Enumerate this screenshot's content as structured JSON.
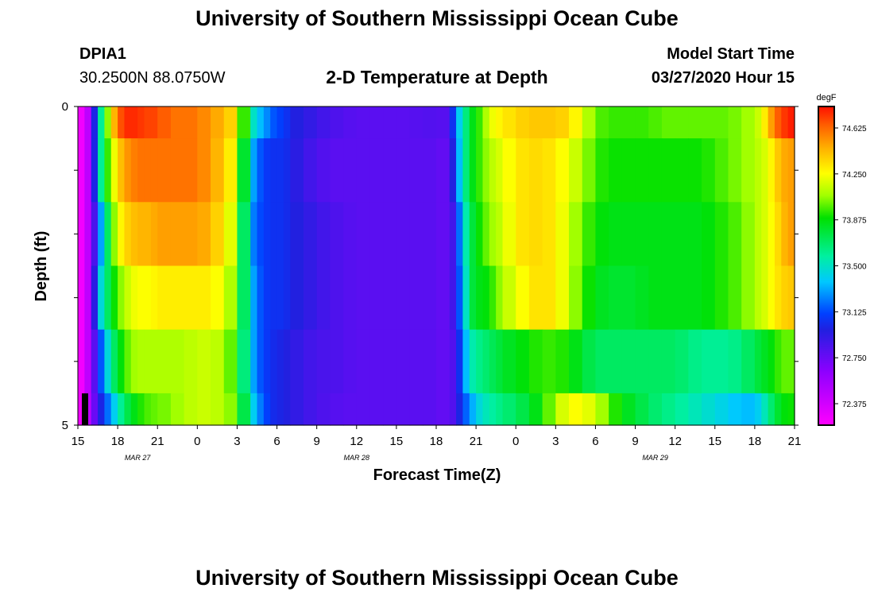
{
  "page": {
    "title": "University of Southern Mississippi Ocean Cube",
    "footer_title": "University of Southern Mississippi Ocean Cube",
    "station_id": "DPIA1",
    "station_coords": "30.2500N 88.0750W",
    "plot_title": "2-D Temperature at Depth",
    "model_start_label": "Model Start Time",
    "model_start_value": "03/27/2020 Hour 15"
  },
  "chart_data": {
    "type": "heatmap",
    "title": "2-D Temperature at Depth",
    "xlabel": "Forecast Time(Z)",
    "ylabel": "Depth (ft)",
    "x_start_hour": 0,
    "x_end_hour": 54,
    "ylim": [
      0,
      5
    ],
    "y_tick_labels": [
      {
        "depth": 0,
        "label": "0"
      },
      {
        "depth": 1,
        "label": ""
      },
      {
        "depth": 2,
        "label": ""
      },
      {
        "depth": 3,
        "label": ""
      },
      {
        "depth": 4,
        "label": ""
      },
      {
        "depth": 5,
        "label": "5"
      }
    ],
    "x_tick_labels": [
      "15",
      "18",
      "21",
      "0",
      "3",
      "6",
      "9",
      "12",
      "15",
      "18",
      "21",
      "0",
      "3",
      "6",
      "9",
      "12",
      "15",
      "18",
      "21"
    ],
    "date_labels": [
      {
        "hour": 4.5,
        "label": "MAR 27"
      },
      {
        "hour": 21,
        "label": "MAR 28"
      },
      {
        "hour": 43.5,
        "label": "MAR 29"
      }
    ],
    "colorbar": {
      "unit": "degF",
      "min": 72.2,
      "max": 74.8,
      "tick_values": [
        72.375,
        72.75,
        73.125,
        73.5,
        73.875,
        74.25,
        74.625
      ],
      "tick_labels": [
        "72.375",
        "72.750",
        "73.125",
        "73.500",
        "73.875",
        "74.250",
        "74.625"
      ]
    },
    "time_keyframes_hours": [
      0,
      0.5,
      1,
      1.5,
      2,
      2.5,
      3,
      3.5,
      4,
      4.5,
      5,
      5.5,
      6,
      7,
      8,
      9,
      10,
      11,
      12,
      13,
      13.5,
      14,
      14.5,
      15,
      15.5,
      16,
      17,
      18,
      19,
      20,
      21,
      22,
      23,
      24,
      25,
      26,
      27,
      28,
      28.5,
      29,
      29.5,
      30,
      30.5,
      31,
      31.5,
      32,
      33,
      34,
      35,
      36,
      37,
      38,
      39,
      40,
      41,
      42,
      43,
      44,
      45,
      46,
      47,
      48,
      49,
      50,
      51,
      51.5,
      52,
      52.5,
      53,
      53.5,
      54
    ],
    "depth_layers": [
      {
        "depth_range": [
          0,
          0.5
        ],
        "values_degF": [
          72.2,
          72.3,
          72.6,
          73.4,
          73.8,
          74.3,
          74.6,
          74.75,
          74.75,
          74.75,
          74.7,
          74.7,
          74.7,
          74.6,
          74.6,
          74.6,
          74.5,
          74.45,
          74.3,
          73.6,
          73.4,
          73.3,
          73.2,
          73.1,
          73.1,
          73.0,
          72.95,
          72.9,
          72.85,
          72.82,
          72.8,
          72.8,
          72.8,
          72.8,
          72.8,
          72.82,
          72.82,
          72.8,
          73.3,
          73.5,
          73.8,
          73.9,
          74.0,
          74.2,
          74.25,
          74.3,
          74.35,
          74.4,
          74.4,
          74.4,
          74.35,
          74.2,
          74.0,
          73.95,
          73.95,
          73.95,
          73.95,
          74.0,
          74.0,
          74.0,
          74.0,
          74.0,
          74.0,
          74.05,
          74.1,
          74.2,
          74.4,
          74.6,
          74.7,
          74.75,
          74.8
        ]
      },
      {
        "depth_range": [
          0.5,
          1.5
        ],
        "values_degF": [
          72.2,
          72.3,
          72.6,
          73.4,
          73.8,
          74.1,
          74.35,
          74.5,
          74.55,
          74.6,
          74.6,
          74.6,
          74.6,
          74.6,
          74.6,
          74.6,
          74.5,
          74.4,
          74.2,
          73.4,
          73.2,
          73.1,
          73.05,
          73.05,
          73.05,
          73.0,
          72.9,
          72.85,
          72.8,
          72.8,
          72.8,
          72.8,
          72.8,
          72.8,
          72.8,
          72.8,
          72.8,
          72.75,
          73.2,
          73.5,
          73.8,
          73.9,
          74.0,
          74.1,
          74.15,
          74.2,
          74.3,
          74.35,
          74.35,
          74.3,
          74.2,
          74.1,
          73.95,
          73.9,
          73.9,
          73.9,
          73.9,
          73.9,
          73.9,
          73.9,
          73.9,
          73.95,
          74.0,
          74.05,
          74.1,
          74.15,
          74.2,
          74.35,
          74.45,
          74.5,
          74.5
        ]
      },
      {
        "depth_range": [
          1.5,
          2.5
        ],
        "values_degF": [
          72.2,
          72.3,
          72.6,
          73.1,
          73.5,
          73.9,
          74.2,
          74.35,
          74.4,
          74.45,
          74.45,
          74.45,
          74.5,
          74.5,
          74.5,
          74.5,
          74.45,
          74.3,
          74.1,
          73.3,
          73.15,
          73.1,
          73.05,
          73.05,
          73.05,
          73.0,
          72.95,
          72.9,
          72.85,
          72.82,
          72.8,
          72.8,
          72.8,
          72.8,
          72.8,
          72.8,
          72.8,
          72.75,
          73.0,
          73.4,
          73.7,
          73.85,
          73.95,
          74.05,
          74.1,
          74.15,
          74.3,
          74.35,
          74.35,
          74.3,
          74.15,
          74.0,
          73.9,
          73.85,
          73.85,
          73.85,
          73.85,
          73.85,
          73.85,
          73.85,
          73.85,
          73.9,
          73.95,
          74.0,
          74.1,
          74.15,
          74.2,
          74.3,
          74.4,
          74.5,
          74.5
        ]
      },
      {
        "depth_range": [
          2.5,
          3.5
        ],
        "values_degF": [
          72.2,
          72.3,
          72.6,
          73.3,
          73.6,
          73.8,
          74.0,
          74.1,
          74.2,
          74.25,
          74.25,
          74.25,
          74.3,
          74.3,
          74.3,
          74.3,
          74.3,
          74.2,
          74.0,
          73.4,
          73.2,
          73.1,
          73.05,
          73.05,
          73.05,
          73.0,
          72.95,
          72.9,
          72.85,
          72.82,
          72.8,
          72.8,
          72.8,
          72.8,
          72.8,
          72.8,
          72.8,
          72.75,
          73.0,
          73.3,
          73.7,
          73.85,
          73.85,
          73.9,
          74.0,
          74.1,
          74.2,
          74.3,
          74.35,
          74.3,
          74.15,
          73.95,
          73.85,
          73.8,
          73.8,
          73.8,
          73.85,
          73.85,
          73.85,
          73.85,
          73.85,
          73.9,
          73.95,
          74.0,
          74.1,
          74.15,
          74.2,
          74.3,
          74.35,
          74.4,
          74.4
        ]
      },
      {
        "depth_range": [
          3.5,
          4.5
        ],
        "values_degF": [
          72.2,
          72.3,
          72.6,
          73.0,
          73.3,
          73.6,
          73.8,
          73.95,
          74.05,
          74.1,
          74.1,
          74.1,
          74.1,
          74.1,
          74.1,
          74.15,
          74.15,
          74.1,
          73.9,
          73.4,
          73.2,
          73.1,
          73.05,
          73.0,
          73.0,
          72.95,
          72.9,
          72.85,
          72.85,
          72.82,
          72.8,
          72.8,
          72.8,
          72.8,
          72.8,
          72.8,
          72.8,
          72.75,
          72.9,
          73.2,
          73.5,
          73.6,
          73.65,
          73.7,
          73.75,
          73.8,
          73.85,
          73.9,
          73.95,
          73.95,
          73.9,
          73.8,
          73.7,
          73.7,
          73.7,
          73.7,
          73.7,
          73.7,
          73.7,
          73.65,
          73.6,
          73.6,
          73.6,
          73.65,
          73.75,
          73.8,
          73.85,
          73.9,
          74.0,
          74.0,
          74.0
        ]
      },
      {
        "depth_range": [
          4.5,
          5
        ],
        "values_degF": [
          72.2,
          72.3,
          72.6,
          72.9,
          73.1,
          73.3,
          73.5,
          73.7,
          73.8,
          73.9,
          73.95,
          74.0,
          74.0,
          74.05,
          74.1,
          74.15,
          74.15,
          74.1,
          74.0,
          73.5,
          73.3,
          73.15,
          73.05,
          73.0,
          73.0,
          72.95,
          72.9,
          72.85,
          72.82,
          72.8,
          72.8,
          72.8,
          72.8,
          72.8,
          72.8,
          72.8,
          72.8,
          72.75,
          72.9,
          73.1,
          73.25,
          73.4,
          73.5,
          73.55,
          73.6,
          73.65,
          73.7,
          73.8,
          73.9,
          74.1,
          74.25,
          74.25,
          74.15,
          74.0,
          73.85,
          73.8,
          73.7,
          73.65,
          73.6,
          73.55,
          73.5,
          73.45,
          73.4,
          73.35,
          73.35,
          73.45,
          73.6,
          73.75,
          73.85,
          73.9,
          73.9
        ]
      }
    ]
  }
}
